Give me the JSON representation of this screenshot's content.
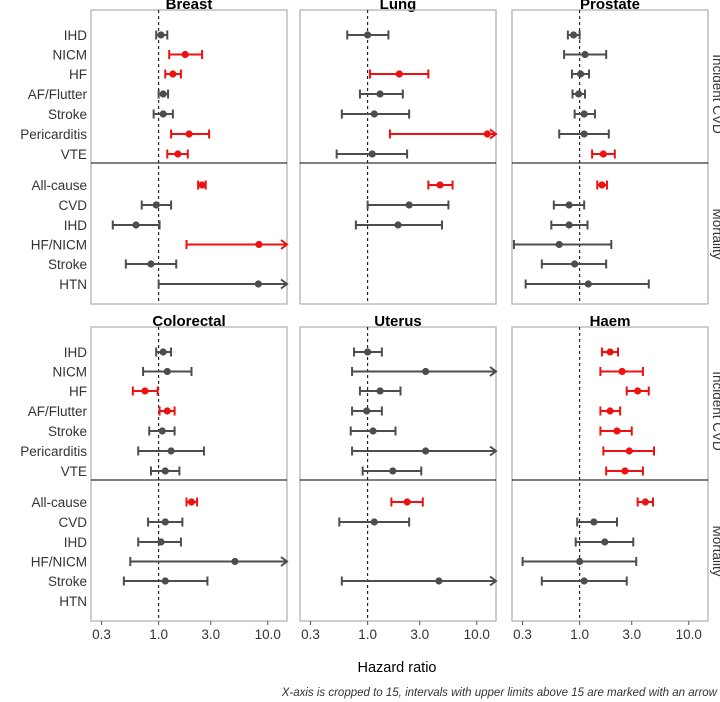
{
  "chart_data": {
    "type": "forest",
    "xlabel": "Hazard ratio",
    "x_scale": "log",
    "xlim": [
      0.24,
      15
    ],
    "x_ticks": [
      0.3,
      1.0,
      3.0,
      10.0
    ],
    "x_tick_labels": [
      "0.3",
      "1.0",
      "3.0",
      "10.0"
    ],
    "reference_line": 1.0,
    "caption": "X-axis is cropped to 15, intervals with upper limits above 15 are marked with an arrow",
    "colors": {
      "significant": "#ee1111",
      "nonsignificant": "#4d4d4d",
      "frame": "#b3b3b3"
    },
    "sections": [
      {
        "name": "Incident CVD",
        "rows": [
          "IHD",
          "NICM",
          "HF",
          "AF/Flutter",
          "Stroke",
          "Pericarditis",
          "VTE"
        ]
      },
      {
        "name": "Mortality",
        "rows": [
          "All-cause",
          "CVD",
          "IHD",
          "HF/NICM",
          "Stroke",
          "HTN"
        ]
      }
    ],
    "panels": [
      {
        "title": "Breast",
        "incident": [
          {
            "outcome": "IHD",
            "hr": 1.05,
            "lo": 0.95,
            "hi": 1.2,
            "sig": false
          },
          {
            "outcome": "NICM",
            "hr": 1.75,
            "lo": 1.25,
            "hi": 2.5,
            "sig": true
          },
          {
            "outcome": "HF",
            "hr": 1.35,
            "lo": 1.15,
            "hi": 1.6,
            "sig": true
          },
          {
            "outcome": "AF/Flutter",
            "hr": 1.1,
            "lo": 1.0,
            "hi": 1.22,
            "sig": false
          },
          {
            "outcome": "Stroke",
            "hr": 1.1,
            "lo": 0.9,
            "hi": 1.35,
            "sig": false
          },
          {
            "outcome": "Pericarditis",
            "hr": 1.9,
            "lo": 1.3,
            "hi": 2.9,
            "sig": true
          },
          {
            "outcome": "VTE",
            "hr": 1.5,
            "lo": 1.2,
            "hi": 1.85,
            "sig": true
          }
        ],
        "mortality": [
          {
            "outcome": "All-cause",
            "hr": 2.5,
            "lo": 2.3,
            "hi": 2.7,
            "sig": true
          },
          {
            "outcome": "CVD",
            "hr": 0.95,
            "lo": 0.7,
            "hi": 1.3,
            "sig": false
          },
          {
            "outcome": "IHD",
            "hr": 0.62,
            "lo": 0.38,
            "hi": 1.02,
            "sig": false
          },
          {
            "outcome": "HF/NICM",
            "hr": 8.3,
            "lo": 1.8,
            "hi": 16,
            "sig": true,
            "arrow": true
          },
          {
            "outcome": "Stroke",
            "hr": 0.85,
            "lo": 0.5,
            "hi": 1.45,
            "sig": false
          },
          {
            "outcome": "HTN",
            "hr": 8.2,
            "lo": 1.0,
            "hi": 16,
            "sig": false,
            "arrow": true
          }
        ]
      },
      {
        "title": "Lung",
        "incident": [
          {
            "outcome": "IHD",
            "hr": 1.0,
            "lo": 0.65,
            "hi": 1.55,
            "sig": false
          },
          {
            "outcome": "NICM",
            "hr": null,
            "lo": null,
            "hi": null,
            "sig": false
          },
          {
            "outcome": "HF",
            "hr": 1.95,
            "lo": 1.05,
            "hi": 3.6,
            "sig": true
          },
          {
            "outcome": "AF/Flutter",
            "hr": 1.3,
            "lo": 0.85,
            "hi": 2.1,
            "sig": false
          },
          {
            "outcome": "Stroke",
            "hr": 1.15,
            "lo": 0.58,
            "hi": 2.4,
            "sig": false
          },
          {
            "outcome": "Pericarditis",
            "hr": 12.5,
            "lo": 1.6,
            "hi": 16,
            "sig": true,
            "arrow": true
          },
          {
            "outcome": "VTE",
            "hr": 1.1,
            "lo": 0.52,
            "hi": 2.3,
            "sig": false
          }
        ],
        "mortality": [
          {
            "outcome": "All-cause",
            "hr": 4.6,
            "lo": 3.6,
            "hi": 6.0,
            "sig": true
          },
          {
            "outcome": "CVD",
            "hr": 2.4,
            "lo": 1.0,
            "hi": 5.5,
            "sig": false
          },
          {
            "outcome": "IHD",
            "hr": 1.9,
            "lo": 0.78,
            "hi": 4.8,
            "sig": false
          },
          {
            "outcome": "HF/NICM",
            "hr": null,
            "lo": null,
            "hi": null,
            "sig": false
          },
          {
            "outcome": "Stroke",
            "hr": null,
            "lo": null,
            "hi": null,
            "sig": false
          },
          {
            "outcome": "HTN",
            "hr": null,
            "lo": null,
            "hi": null,
            "sig": false
          }
        ]
      },
      {
        "title": "Prostate",
        "incident": [
          {
            "outcome": "IHD",
            "hr": 0.88,
            "lo": 0.78,
            "hi": 1.0,
            "sig": false
          },
          {
            "outcome": "NICM",
            "hr": 1.12,
            "lo": 0.72,
            "hi": 1.75,
            "sig": false
          },
          {
            "outcome": "HF",
            "hr": 1.02,
            "lo": 0.85,
            "hi": 1.22,
            "sig": false
          },
          {
            "outcome": "AF/Flutter",
            "hr": 0.98,
            "lo": 0.86,
            "hi": 1.12,
            "sig": false
          },
          {
            "outcome": "Stroke",
            "hr": 1.1,
            "lo": 0.9,
            "hi": 1.38,
            "sig": false
          },
          {
            "outcome": "Pericarditis",
            "hr": 1.1,
            "lo": 0.65,
            "hi": 1.85,
            "sig": false
          },
          {
            "outcome": "VTE",
            "hr": 1.65,
            "lo": 1.3,
            "hi": 2.1,
            "sig": true
          }
        ],
        "mortality": [
          {
            "outcome": "All-cause",
            "hr": 1.6,
            "lo": 1.45,
            "hi": 1.78,
            "sig": true
          },
          {
            "outcome": "CVD",
            "hr": 0.8,
            "lo": 0.58,
            "hi": 1.1,
            "sig": false
          },
          {
            "outcome": "IHD",
            "hr": 0.8,
            "lo": 0.55,
            "hi": 1.18,
            "sig": false
          },
          {
            "outcome": "HF/NICM",
            "hr": 0.65,
            "lo": 0.25,
            "hi": 1.95,
            "sig": false
          },
          {
            "outcome": "Stroke",
            "hr": 0.9,
            "lo": 0.45,
            "hi": 1.75,
            "sig": false
          },
          {
            "outcome": "HTN",
            "hr": 1.2,
            "lo": 0.32,
            "hi": 4.3,
            "sig": false
          }
        ]
      },
      {
        "title": "Colorectal",
        "incident": [
          {
            "outcome": "IHD",
            "hr": 1.1,
            "lo": 0.95,
            "hi": 1.3,
            "sig": false
          },
          {
            "outcome": "NICM",
            "hr": 1.2,
            "lo": 0.72,
            "hi": 2.0,
            "sig": false
          },
          {
            "outcome": "HF",
            "hr": 0.75,
            "lo": 0.58,
            "hi": 0.98,
            "sig": true
          },
          {
            "outcome": "AF/Flutter",
            "hr": 1.2,
            "lo": 1.02,
            "hi": 1.4,
            "sig": true
          },
          {
            "outcome": "Stroke",
            "hr": 1.08,
            "lo": 0.82,
            "hi": 1.4,
            "sig": false
          },
          {
            "outcome": "Pericarditis",
            "hr": 1.3,
            "lo": 0.65,
            "hi": 2.6,
            "sig": false
          },
          {
            "outcome": "VTE",
            "hr": 1.15,
            "lo": 0.85,
            "hi": 1.55,
            "sig": false
          }
        ],
        "mortality": [
          {
            "outcome": "All-cause",
            "hr": 2.0,
            "lo": 1.8,
            "hi": 2.25,
            "sig": true
          },
          {
            "outcome": "CVD",
            "hr": 1.15,
            "lo": 0.8,
            "hi": 1.65,
            "sig": false
          },
          {
            "outcome": "IHD",
            "hr": 1.05,
            "lo": 0.65,
            "hi": 1.6,
            "sig": false
          },
          {
            "outcome": "HF/NICM",
            "hr": 5.0,
            "lo": 0.55,
            "hi": 16,
            "sig": false,
            "arrow": true
          },
          {
            "outcome": "Stroke",
            "hr": 1.15,
            "lo": 0.48,
            "hi": 2.8,
            "sig": false
          },
          {
            "outcome": "HTN",
            "hr": null,
            "lo": null,
            "hi": null,
            "sig": false
          }
        ]
      },
      {
        "title": "Uterus",
        "incident": [
          {
            "outcome": "IHD",
            "hr": 1.0,
            "lo": 0.75,
            "hi": 1.35,
            "sig": false
          },
          {
            "outcome": "NICM",
            "hr": 3.4,
            "lo": 0.72,
            "hi": 16,
            "sig": false,
            "arrow": true
          },
          {
            "outcome": "HF",
            "hr": 1.3,
            "lo": 0.85,
            "hi": 2.0,
            "sig": false
          },
          {
            "outcome": "AF/Flutter",
            "hr": 0.98,
            "lo": 0.72,
            "hi": 1.35,
            "sig": false
          },
          {
            "outcome": "Stroke",
            "hr": 1.12,
            "lo": 0.7,
            "hi": 1.8,
            "sig": false
          },
          {
            "outcome": "Pericarditis",
            "hr": 3.4,
            "lo": 0.72,
            "hi": 16,
            "sig": false,
            "arrow": true
          },
          {
            "outcome": "VTE",
            "hr": 1.7,
            "lo": 0.9,
            "hi": 3.1,
            "sig": false
          }
        ],
        "mortality": [
          {
            "outcome": "All-cause",
            "hr": 2.3,
            "lo": 1.65,
            "hi": 3.2,
            "sig": true
          },
          {
            "outcome": "CVD",
            "hr": 1.15,
            "lo": 0.55,
            "hi": 2.4,
            "sig": false
          },
          {
            "outcome": "IHD",
            "hr": null,
            "lo": null,
            "hi": null,
            "sig": false
          },
          {
            "outcome": "HF/NICM",
            "hr": null,
            "lo": null,
            "hi": null,
            "sig": false
          },
          {
            "outcome": "Stroke",
            "hr": 4.5,
            "lo": 0.58,
            "hi": 16,
            "sig": false,
            "arrow": true
          },
          {
            "outcome": "HTN",
            "hr": null,
            "lo": null,
            "hi": null,
            "sig": false
          }
        ]
      },
      {
        "title": "Haem",
        "incident": [
          {
            "outcome": "IHD",
            "hr": 1.9,
            "lo": 1.6,
            "hi": 2.25,
            "sig": true
          },
          {
            "outcome": "NICM",
            "hr": 2.45,
            "lo": 1.55,
            "hi": 3.8,
            "sig": true
          },
          {
            "outcome": "HF",
            "hr": 3.4,
            "lo": 2.7,
            "hi": 4.3,
            "sig": true
          },
          {
            "outcome": "AF/Flutter",
            "hr": 1.9,
            "lo": 1.55,
            "hi": 2.35,
            "sig": true
          },
          {
            "outcome": "Stroke",
            "hr": 2.2,
            "lo": 1.55,
            "hi": 3.0,
            "sig": true
          },
          {
            "outcome": "Pericarditis",
            "hr": 2.85,
            "lo": 1.65,
            "hi": 4.8,
            "sig": true
          },
          {
            "outcome": "VTE",
            "hr": 2.6,
            "lo": 1.75,
            "hi": 3.8,
            "sig": true
          }
        ],
        "mortality": [
          {
            "outcome": "All-cause",
            "hr": 4.0,
            "lo": 3.4,
            "hi": 4.7,
            "sig": true
          },
          {
            "outcome": "CVD",
            "hr": 1.35,
            "lo": 0.95,
            "hi": 2.2,
            "sig": false
          },
          {
            "outcome": "IHD",
            "hr": 1.7,
            "lo": 0.92,
            "hi": 3.1,
            "sig": false
          },
          {
            "outcome": "HF/NICM",
            "hr": 1.0,
            "lo": 0.3,
            "hi": 3.3,
            "sig": false
          },
          {
            "outcome": "Stroke",
            "hr": 1.1,
            "lo": 0.45,
            "hi": 2.7,
            "sig": false
          },
          {
            "outcome": "HTN",
            "hr": null,
            "lo": null,
            "hi": null,
            "sig": false
          }
        ]
      }
    ]
  }
}
